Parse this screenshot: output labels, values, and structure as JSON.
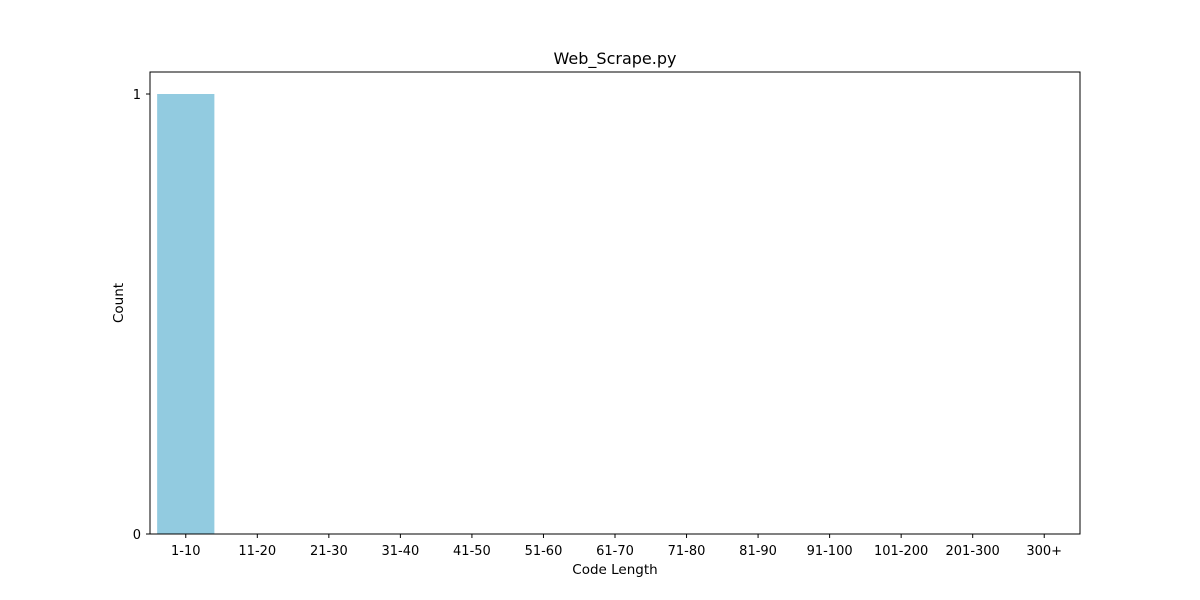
{
  "chart_data": {
    "type": "bar",
    "title": "Web_Scrape.py",
    "xlabel": "Code Length",
    "ylabel": "Count",
    "categories": [
      "1-10",
      "11-20",
      "21-30",
      "31-40",
      "41-50",
      "51-60",
      "61-70",
      "71-80",
      "81-90",
      "91-100",
      "101-200",
      "201-300",
      "300+"
    ],
    "values": [
      1,
      0,
      0,
      0,
      0,
      0,
      0,
      0,
      0,
      0,
      0,
      0,
      0
    ],
    "ylim": [
      0,
      1.05
    ],
    "yticks": [
      0,
      1
    ],
    "grid": false,
    "bar_color": "#92cbe0"
  }
}
